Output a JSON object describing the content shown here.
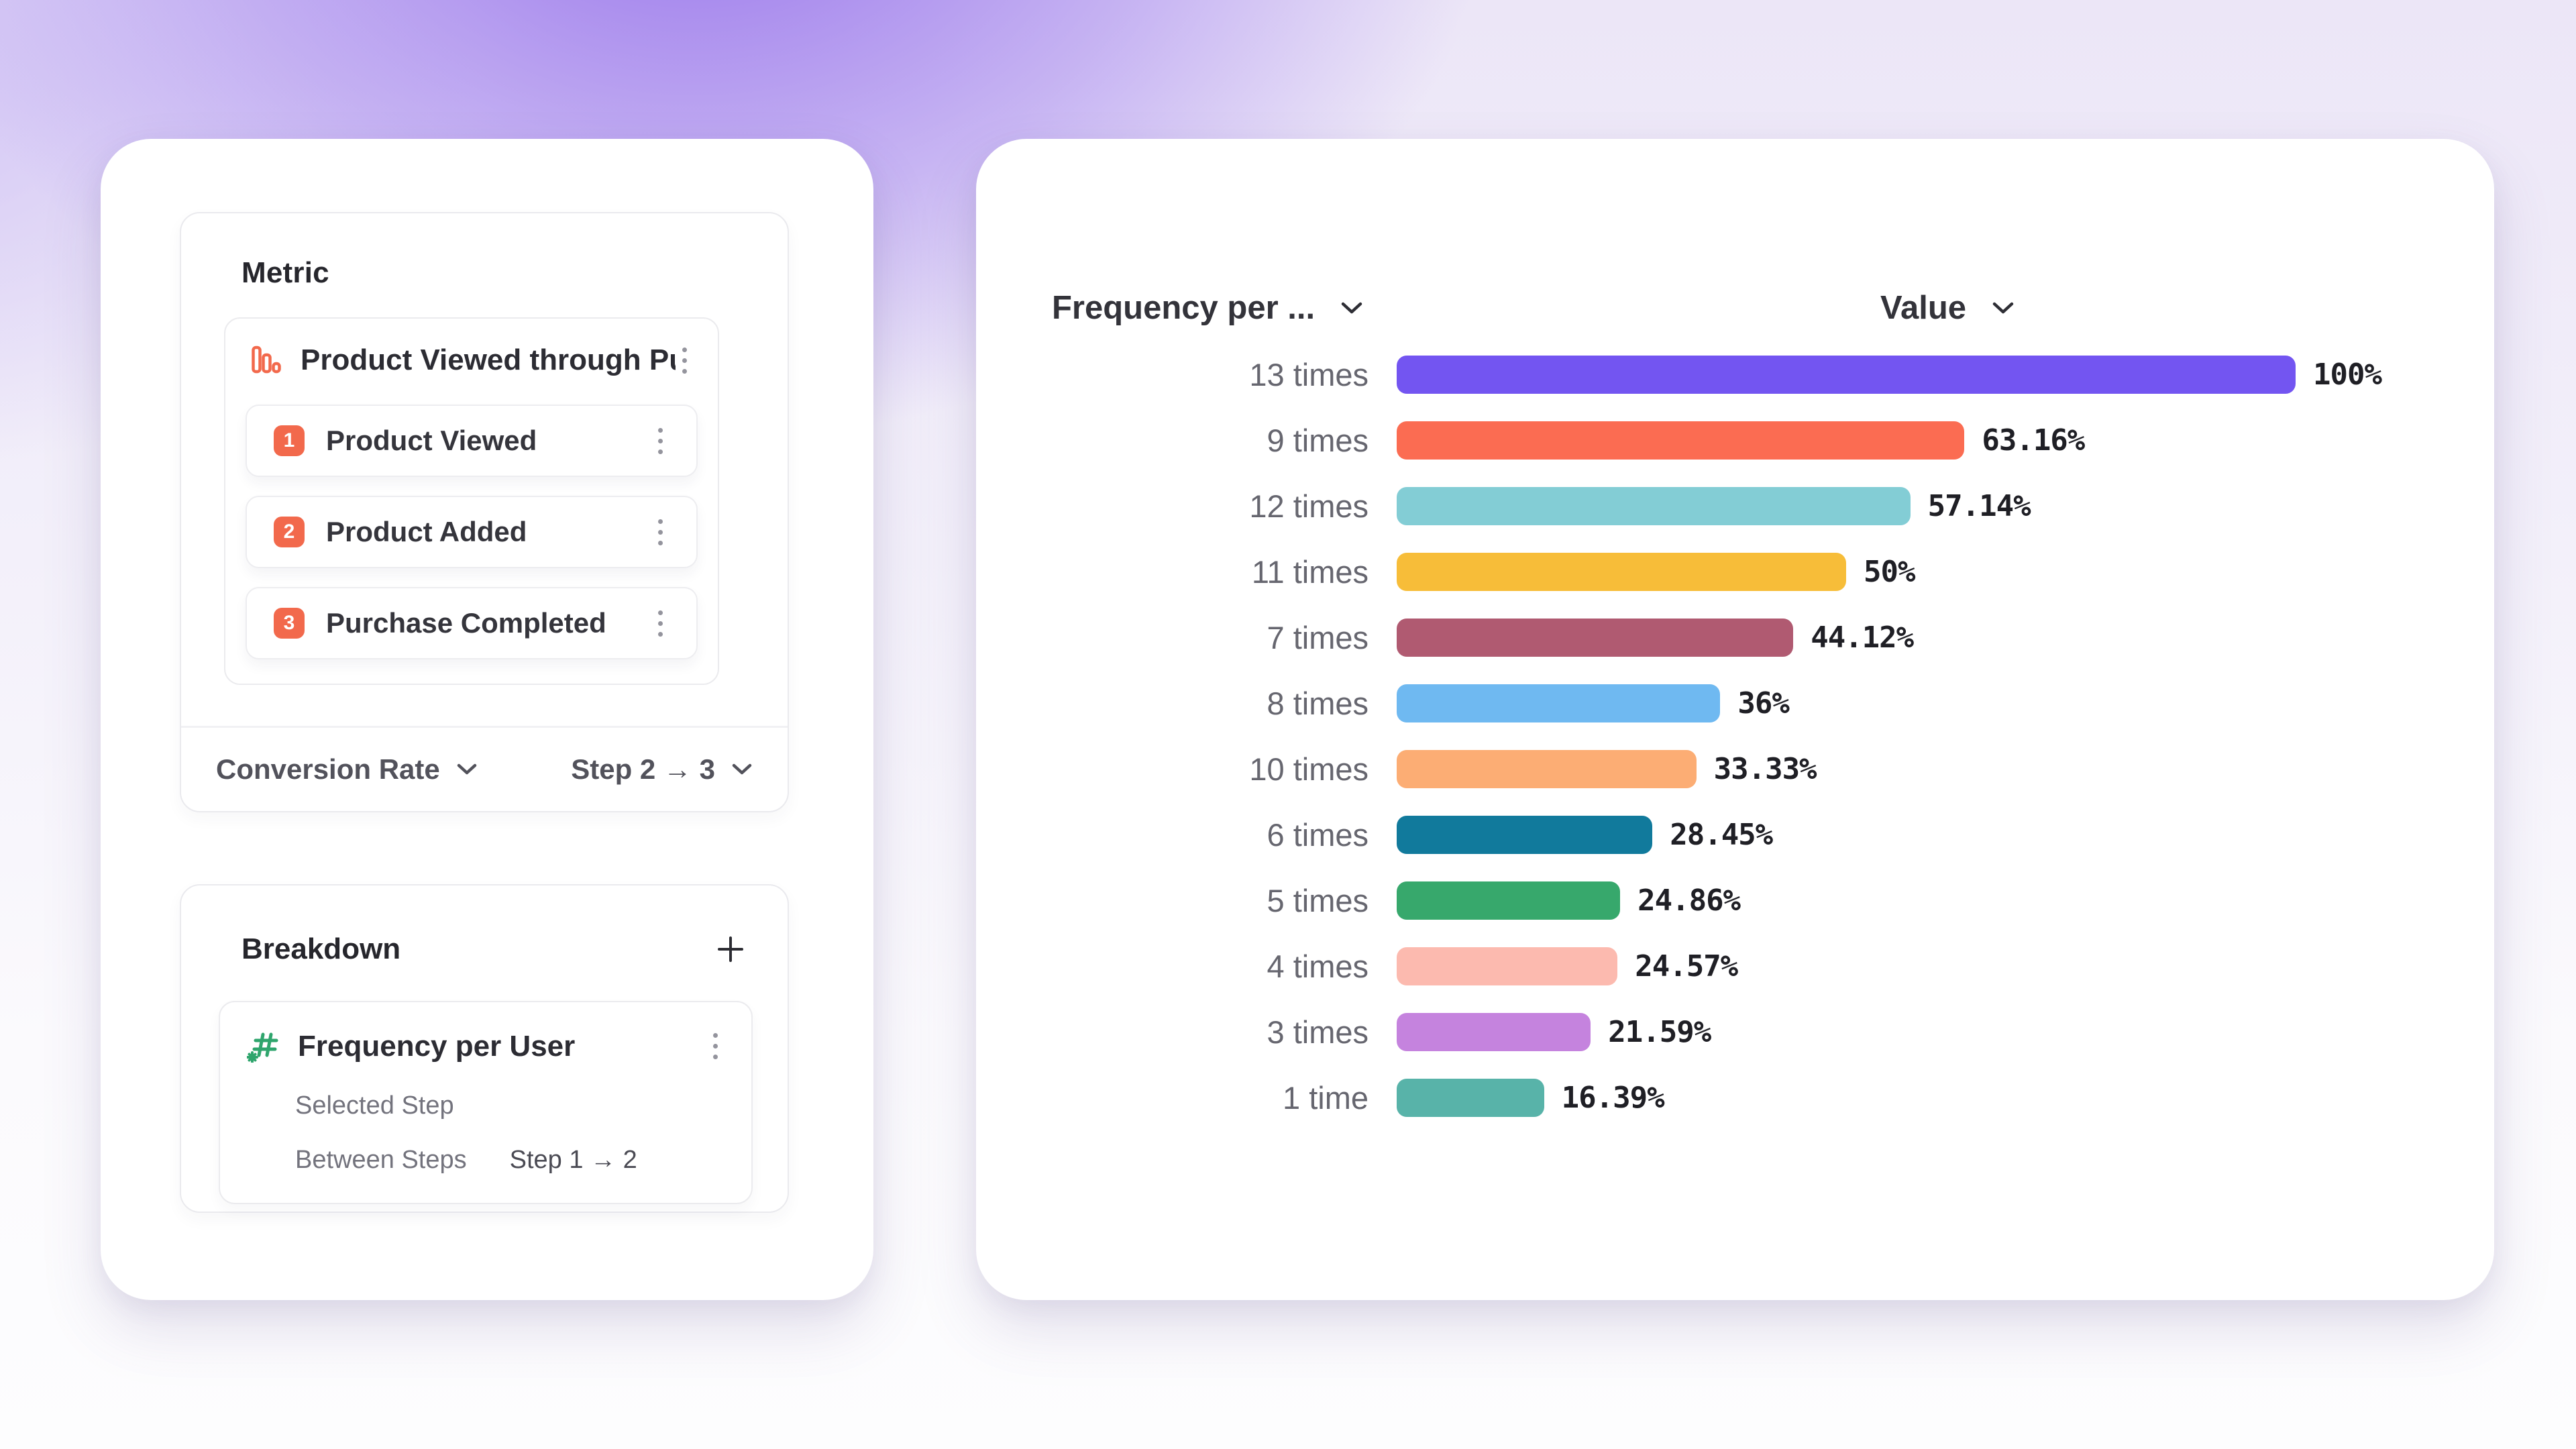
{
  "metric_panel": {
    "title": "Metric",
    "funnel": {
      "name": "Product Viewed through Purch...",
      "steps": [
        {
          "number": "1",
          "label": "Product Viewed"
        },
        {
          "number": "2",
          "label": "Product Added"
        },
        {
          "number": "3",
          "label": "Purchase Completed"
        }
      ]
    },
    "measure_dropdown": "Conversion Rate",
    "step_range_dropdown": "Step 2 → 3"
  },
  "breakdown_panel": {
    "title": "Breakdown",
    "item": {
      "name": "Frequency per User",
      "selected_step_label": "Selected Step",
      "between_steps_label": "Between Steps",
      "between_steps_value": "Step 1 → 2"
    }
  },
  "chart": {
    "breakdown_header": "Frequency per ...",
    "value_header": "Value"
  },
  "chart_data": {
    "type": "bar",
    "orientation": "horizontal",
    "category_column": "Frequency per User",
    "value_column": "Value (Conversion Rate, Step 2 → 3)",
    "categories": [
      "13 times",
      "9 times",
      "12 times",
      "11 times",
      "7 times",
      "8 times",
      "10 times",
      "6 times",
      "5 times",
      "4 times",
      "3 times",
      "1 time"
    ],
    "values": [
      100,
      63.16,
      57.14,
      50,
      44.12,
      36,
      33.33,
      28.45,
      24.86,
      24.57,
      21.59,
      16.39
    ],
    "value_labels": [
      "100%",
      "63.16%",
      "57.14%",
      "50%",
      "44.12%",
      "36%",
      "33.33%",
      "28.45%",
      "24.86%",
      "24.57%",
      "21.59%",
      "16.39%"
    ],
    "colors": [
      "#7355F1",
      "#FB6C52",
      "#83CDD5",
      "#F7BD39",
      "#B05A71",
      "#6FB9F1",
      "#FCAD74",
      "#117A9C",
      "#37A86C",
      "#FCBAAF",
      "#C583DE",
      "#58B3A9"
    ],
    "xlim": [
      0,
      100
    ],
    "grid": false,
    "legend": null
  },
  "colors": {
    "accent_orange": "#F2694C",
    "accent_green": "#2FA56D",
    "bar_100_purple": "#7355F1",
    "panel_background": "#FFFFFF",
    "page_gradient_purple": "#946FEA"
  }
}
